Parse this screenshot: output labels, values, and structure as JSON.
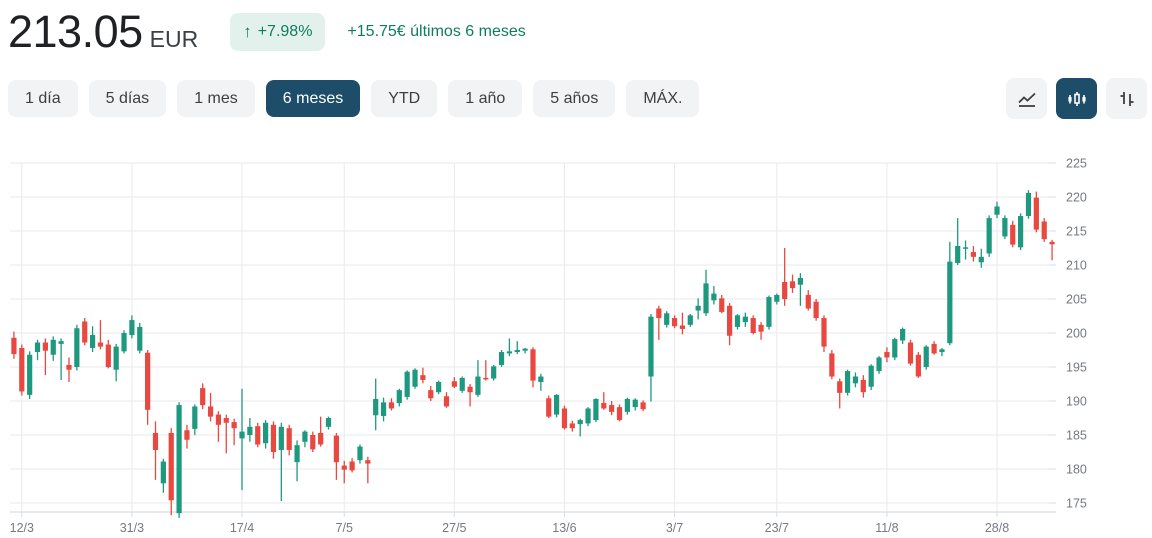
{
  "header": {
    "price": "213.05",
    "currency": "EUR",
    "change_arrow": "↑",
    "change_badge": "+7.98%",
    "change_text": "+15.75€ últimos 6 meses"
  },
  "range_buttons": [
    {
      "label": "1 día",
      "selected": false
    },
    {
      "label": "5 días",
      "selected": false
    },
    {
      "label": "1 mes",
      "selected": false
    },
    {
      "label": "6 meses",
      "selected": true
    },
    {
      "label": "YTD",
      "selected": false
    },
    {
      "label": "1 año",
      "selected": false
    },
    {
      "label": "5 años",
      "selected": false
    },
    {
      "label": "MÁX.",
      "selected": false
    }
  ],
  "chart_toolbar": [
    {
      "icon": "line-chart-icon",
      "selected": false
    },
    {
      "icon": "candlestick-chart-icon",
      "selected": true
    },
    {
      "icon": "ohlc-chart-icon",
      "selected": false
    }
  ],
  "colors": {
    "accent": "#1d4d68",
    "candle_up": "#1f9880",
    "candle_down": "#e8483f",
    "positive": "#0e7d5e",
    "badge_bg": "#e3f1ec",
    "button_bg": "#f1f3f4",
    "text_primary": "#202124",
    "text_secondary": "#3c4043",
    "axis_text": "#757a80",
    "gridline": "#e9eaec",
    "axis_line": "#dadce0"
  },
  "chart_data": {
    "type": "candlestick",
    "title": "",
    "xlabel": "",
    "ylabel": "EUR",
    "ylim": [
      172,
      226
    ],
    "y_ticks": [
      175,
      180,
      185,
      190,
      195,
      200,
      205,
      210,
      215,
      220,
      225
    ],
    "x_tick_labels": [
      "12/3",
      "31/3",
      "17/4",
      "7/5",
      "27/5",
      "13/6",
      "3/7",
      "23/7",
      "11/8",
      "28/8"
    ],
    "x_tick_indices": [
      1,
      15,
      29,
      42,
      56,
      70,
      84,
      97,
      111,
      125
    ],
    "grid": true,
    "legend": false,
    "candles_format": [
      "open",
      "high",
      "low",
      "close"
    ],
    "candles": [
      [
        199.3,
        200.2,
        196.2,
        196.9
      ],
      [
        197.8,
        198.3,
        190.8,
        191.4
      ],
      [
        190.9,
        197.3,
        190.3,
        196.8
      ],
      [
        197.2,
        199.0,
        196.0,
        198.6
      ],
      [
        198.6,
        199.2,
        193.8,
        197.4
      ],
      [
        196.8,
        199.5,
        195.9,
        199.0
      ],
      [
        198.4,
        199.2,
        193.1,
        198.8
      ],
      [
        195.3,
        196.4,
        192.8,
        194.6
      ],
      [
        195.0,
        201.2,
        194.5,
        200.7
      ],
      [
        201.7,
        202.2,
        198.2,
        198.6
      ],
      [
        197.8,
        201.0,
        197.2,
        199.7
      ],
      [
        198.6,
        201.9,
        197.6,
        198.0
      ],
      [
        198.3,
        199.0,
        194.8,
        195.0
      ],
      [
        194.6,
        198.4,
        192.9,
        198.0
      ],
      [
        197.3,
        200.4,
        197.0,
        200.0
      ],
      [
        199.7,
        202.6,
        199.2,
        201.9
      ],
      [
        197.4,
        201.5,
        197.0,
        200.9
      ],
      [
        197.1,
        197.5,
        186.5,
        188.7
      ],
      [
        185.3,
        187.0,
        178.4,
        182.8
      ],
      [
        177.9,
        181.5,
        176.5,
        181.1
      ],
      [
        185.3,
        186.0,
        173.2,
        175.4
      ],
      [
        173.5,
        189.8,
        172.8,
        189.4
      ],
      [
        185.7,
        186.5,
        183.0,
        184.3
      ],
      [
        185.9,
        189.5,
        185.0,
        189.2
      ],
      [
        191.9,
        192.6,
        188.8,
        189.4
      ],
      [
        189.2,
        191.2,
        187.0,
        187.7
      ],
      [
        188.0,
        188.5,
        184.0,
        186.5
      ],
      [
        187.5,
        188.0,
        182.3,
        186.8
      ],
      [
        186.9,
        187.4,
        183.5,
        186.0
      ],
      [
        184.5,
        191.8,
        176.9,
        185.5
      ],
      [
        185.0,
        187.5,
        184.0,
        186.2
      ],
      [
        186.3,
        186.8,
        183.2,
        183.6
      ],
      [
        183.8,
        187.2,
        183.0,
        186.8
      ],
      [
        186.5,
        187.0,
        181.5,
        182.5
      ],
      [
        182.8,
        186.8,
        175.3,
        186.2
      ],
      [
        186.0,
        186.5,
        182.0,
        182.8
      ],
      [
        181.0,
        184.2,
        178.2,
        183.5
      ],
      [
        184.0,
        185.7,
        183.2,
        185.5
      ],
      [
        185.0,
        185.5,
        182.5,
        182.9
      ],
      [
        185.3,
        187.7,
        183.3,
        183.6
      ],
      [
        186.2,
        187.7,
        185.8,
        187.5
      ],
      [
        184.9,
        185.3,
        178.4,
        181.0
      ],
      [
        180.5,
        181.2,
        177.9,
        179.9
      ],
      [
        181.1,
        181.6,
        179.5,
        179.8
      ],
      [
        181.3,
        183.6,
        180.8,
        183.3
      ],
      [
        181.3,
        181.8,
        177.9,
        180.8
      ],
      [
        187.9,
        193.3,
        185.7,
        190.3
      ],
      [
        187.8,
        190.5,
        187.0,
        189.8
      ],
      [
        189.8,
        190.4,
        188.6,
        188.9
      ],
      [
        189.7,
        191.8,
        189.2,
        191.6
      ],
      [
        190.6,
        194.5,
        190.2,
        194.3
      ],
      [
        192.1,
        194.8,
        191.8,
        194.6
      ],
      [
        193.8,
        194.9,
        192.6,
        193.1
      ],
      [
        191.6,
        192.2,
        190.0,
        190.4
      ],
      [
        191.3,
        193.0,
        191.0,
        192.8
      ],
      [
        190.7,
        191.3,
        189.0,
        189.2
      ],
      [
        192.9,
        193.5,
        191.9,
        192.1
      ],
      [
        191.5,
        193.6,
        191.2,
        193.4
      ],
      [
        192.1,
        192.5,
        189.2,
        191.3
      ],
      [
        190.9,
        196.0,
        190.6,
        193.6
      ],
      [
        193.4,
        196.0,
        193.0,
        193.3
      ],
      [
        193.3,
        195.3,
        193.0,
        195.1
      ],
      [
        195.3,
        197.5,
        195.0,
        197.2
      ],
      [
        197.0,
        199.2,
        196.6,
        197.3
      ],
      [
        197.2,
        198.8,
        196.9,
        197.5
      ],
      [
        197.4,
        197.8,
        197.0,
        197.7
      ],
      [
        197.6,
        197.9,
        192.0,
        193.0
      ],
      [
        192.8,
        194.0,
        191.5,
        193.6
      ],
      [
        190.4,
        190.8,
        187.5,
        187.7
      ],
      [
        188.0,
        191.0,
        187.6,
        190.9
      ],
      [
        188.9,
        189.3,
        185.8,
        186.0
      ],
      [
        186.7,
        187.1,
        185.5,
        186.0
      ],
      [
        186.6,
        187.4,
        184.8,
        187.2
      ],
      [
        186.7,
        189.1,
        186.3,
        188.9
      ],
      [
        187.2,
        190.4,
        186.9,
        190.3
      ],
      [
        189.7,
        191.3,
        188.7,
        188.9
      ],
      [
        189.4,
        190.0,
        187.9,
        188.4
      ],
      [
        189.1,
        189.5,
        187.0,
        187.2
      ],
      [
        188.4,
        190.5,
        188.0,
        190.3
      ],
      [
        189.1,
        190.4,
        188.6,
        190.2
      ],
      [
        189.8,
        190.1,
        188.5,
        188.8
      ],
      [
        193.6,
        202.8,
        189.9,
        202.4
      ],
      [
        203.6,
        204.0,
        199.0,
        202.2
      ],
      [
        201.2,
        203.2,
        200.8,
        202.9
      ],
      [
        202.2,
        202.6,
        200.7,
        201.0
      ],
      [
        201.1,
        203.0,
        199.8,
        200.6
      ],
      [
        201.2,
        202.8,
        200.9,
        202.6
      ],
      [
        203.3,
        205.1,
        202.0,
        204.0
      ],
      [
        202.9,
        209.3,
        202.5,
        207.3
      ],
      [
        204.8,
        206.9,
        204.2,
        205.8
      ],
      [
        205.1,
        205.6,
        202.9,
        203.1
      ],
      [
        204.0,
        204.4,
        198.2,
        199.6
      ],
      [
        200.9,
        202.8,
        200.5,
        202.6
      ],
      [
        201.6,
        203.0,
        200.9,
        202.4
      ],
      [
        202.2,
        202.6,
        199.8,
        200.0
      ],
      [
        201.2,
        201.6,
        199.0,
        200.2
      ],
      [
        200.9,
        205.5,
        200.5,
        205.3
      ],
      [
        204.6,
        205.8,
        204.2,
        205.6
      ],
      [
        207.5,
        212.5,
        204.0,
        205.0
      ],
      [
        207.6,
        208.6,
        205.9,
        206.6
      ],
      [
        207.1,
        208.8,
        204.0,
        208.1
      ],
      [
        205.6,
        206.3,
        203.3,
        203.6
      ],
      [
        204.6,
        205.0,
        201.8,
        202.2
      ],
      [
        202.2,
        202.6,
        197.2,
        198.0
      ],
      [
        197.0,
        197.5,
        193.2,
        193.6
      ],
      [
        192.9,
        193.3,
        188.9,
        191.2
      ],
      [
        191.2,
        194.6,
        190.8,
        194.4
      ],
      [
        192.6,
        194.2,
        192.0,
        193.6
      ],
      [
        193.1,
        193.8,
        190.5,
        191.3
      ],
      [
        192.1,
        195.4,
        191.6,
        195.2
      ],
      [
        194.4,
        196.6,
        194.0,
        196.4
      ],
      [
        197.2,
        197.9,
        195.7,
        196.4
      ],
      [
        196.4,
        199.3,
        196.0,
        199.1
      ],
      [
        198.9,
        200.8,
        198.4,
        200.6
      ],
      [
        198.6,
        199.0,
        195.2,
        195.5
      ],
      [
        196.8,
        197.2,
        193.4,
        193.6
      ],
      [
        195.0,
        198.2,
        194.6,
        198.0
      ],
      [
        198.4,
        198.8,
        196.8,
        197.0
      ],
      [
        197.2,
        197.8,
        196.6,
        197.6
      ],
      [
        198.5,
        213.4,
        198.2,
        210.5
      ],
      [
        210.3,
        216.9,
        210.0,
        212.8
      ],
      [
        212.4,
        213.6,
        210.8,
        212.6
      ],
      [
        211.9,
        212.8,
        210.5,
        211.2
      ],
      [
        210.4,
        212.4,
        209.6,
        211.2
      ],
      [
        211.7,
        217.3,
        211.2,
        216.9
      ],
      [
        217.4,
        219.3,
        216.9,
        218.6
      ],
      [
        214.2,
        217.3,
        213.8,
        216.9
      ],
      [
        215.9,
        216.5,
        212.6,
        213.0
      ],
      [
        212.6,
        217.6,
        212.2,
        217.2
      ],
      [
        217.2,
        221.0,
        216.8,
        220.6
      ],
      [
        219.9,
        220.8,
        214.8,
        215.2
      ],
      [
        216.4,
        216.9,
        213.4,
        213.8
      ],
      [
        213.4,
        213.7,
        210.7,
        213.05
      ]
    ]
  }
}
